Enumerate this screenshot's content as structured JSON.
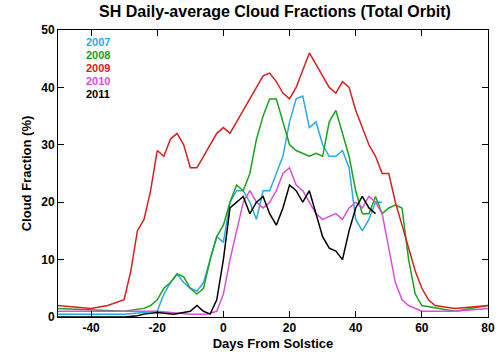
{
  "chart_data": {
    "type": "line",
    "title": "SH Daily-average Cloud Fractions (Total Orbit)",
    "x_label": "Days From Solstice",
    "y_label": "Cloud Fraction (%)",
    "xlim": [
      -50,
      80
    ],
    "ylim": [
      0,
      50
    ],
    "xticks": [
      -40,
      -20,
      0,
      20,
      40,
      60,
      80
    ],
    "yticks": [
      0,
      10,
      20,
      30,
      40,
      50
    ],
    "grid": false,
    "legend": "upper left",
    "series": [
      {
        "name": "2007",
        "color": "#29abe2",
        "x": [
          -50,
          -40,
          -30,
          -20,
          -18,
          -16,
          -14,
          -12,
          -10,
          -8,
          -6,
          -4,
          -2,
          0,
          2,
          4,
          6,
          8,
          10,
          12,
          14,
          16,
          18,
          20,
          22,
          24,
          26,
          28,
          30,
          32,
          34,
          36,
          38,
          40,
          42,
          44,
          46,
          48
        ],
        "values": [
          0.5,
          0.5,
          0.5,
          1,
          4,
          6,
          7.5,
          6,
          5,
          4.5,
          6,
          10,
          14,
          13,
          20,
          22,
          22,
          20,
          17,
          22,
          22,
          25,
          28,
          34,
          38,
          38.5,
          33,
          34,
          30,
          28,
          28,
          29,
          26,
          17,
          15,
          17,
          20,
          20
        ]
      },
      {
        "name": "2008",
        "color": "#1aa31a",
        "x": [
          -50,
          -40,
          -30,
          -24,
          -22,
          -20,
          -18,
          -16,
          -14,
          -12,
          -10,
          -8,
          -6,
          -4,
          -2,
          0,
          2,
          4,
          6,
          8,
          10,
          12,
          14,
          16,
          18,
          20,
          22,
          24,
          26,
          28,
          30,
          32,
          34,
          36,
          38,
          40,
          42,
          44,
          46,
          48,
          50,
          52,
          54,
          56,
          58,
          60,
          70,
          80
        ],
        "values": [
          1.5,
          1.2,
          1,
          1.5,
          2,
          3,
          5,
          6,
          7.5,
          7,
          5,
          4,
          5,
          10,
          14,
          16,
          20,
          23,
          22,
          25,
          31,
          35,
          38,
          38,
          34,
          30,
          29,
          28.5,
          28,
          28.5,
          28,
          34,
          36,
          32,
          28,
          22,
          18,
          18,
          21,
          18,
          19,
          19.5,
          19,
          10,
          4,
          2,
          1,
          2
        ]
      },
      {
        "name": "2009",
        "color": "#d62020",
        "x": [
          -50,
          -40,
          -35,
          -30,
          -28,
          -26,
          -24,
          -22,
          -20,
          -18,
          -16,
          -14,
          -12,
          -10,
          -8,
          -6,
          -4,
          -2,
          0,
          2,
          4,
          6,
          8,
          10,
          12,
          14,
          16,
          18,
          20,
          22,
          24,
          26,
          28,
          30,
          32,
          34,
          36,
          38,
          40,
          42,
          44,
          46,
          48,
          50,
          52,
          54,
          56,
          58,
          60,
          62,
          64,
          70,
          80
        ],
        "values": [
          2,
          1.5,
          2,
          3,
          8,
          15,
          17,
          22,
          29,
          28,
          31,
          32,
          30,
          26,
          26,
          28,
          30,
          32,
          33,
          32,
          34,
          36,
          38,
          40,
          42,
          42.5,
          41,
          39,
          38,
          40,
          43,
          46,
          44,
          42,
          40,
          39,
          41,
          40,
          36,
          33,
          30,
          28,
          25,
          25,
          20,
          16,
          12,
          8,
          5,
          3,
          2,
          1.5,
          2
        ]
      },
      {
        "name": "2010",
        "color": "#d94fd9",
        "x": [
          -50,
          -20,
          -10,
          -5,
          -2,
          0,
          2,
          4,
          6,
          8,
          10,
          12,
          14,
          16,
          18,
          20,
          22,
          24,
          26,
          28,
          30,
          32,
          34,
          36,
          38,
          40,
          42,
          44,
          46,
          48,
          50,
          52,
          54,
          56,
          60,
          70,
          80
        ],
        "values": [
          1,
          1,
          0.5,
          0.5,
          1,
          4,
          10,
          15,
          20,
          22,
          20,
          19,
          20,
          22,
          25,
          26,
          23,
          22,
          20,
          18,
          17,
          17.5,
          18,
          17,
          19,
          20,
          19,
          21,
          20,
          18,
          12,
          6,
          3,
          2,
          1,
          1,
          1.5
        ]
      },
      {
        "name": "2011",
        "color": "#000000",
        "x": [
          -50,
          -30,
          -26,
          -24,
          -20,
          -15,
          -10,
          -8,
          -6,
          -4,
          -2,
          0,
          2,
          4,
          6,
          8,
          10,
          12,
          14,
          16,
          18,
          20,
          22,
          24,
          26,
          28,
          30,
          32,
          34,
          36,
          38,
          40,
          42,
          44,
          46
        ],
        "values": [
          0,
          0,
          0.2,
          0.5,
          0.8,
          0.5,
          1,
          2,
          1,
          0.5,
          3,
          10,
          19,
          20,
          21,
          18,
          20,
          21,
          18,
          16,
          19,
          23,
          22,
          20,
          22,
          18,
          14,
          12,
          11.5,
          10,
          15,
          19,
          21,
          19,
          18
        ]
      }
    ]
  }
}
